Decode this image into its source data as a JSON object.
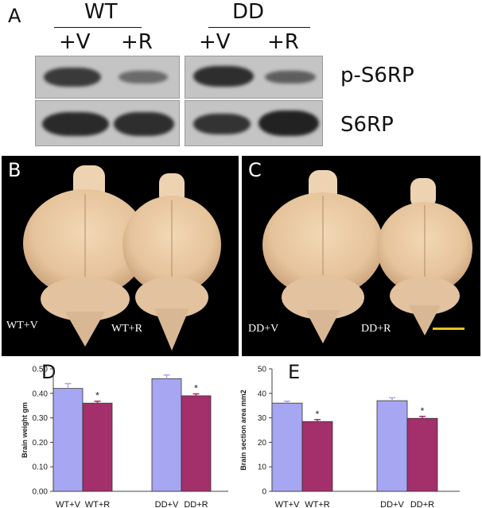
{
  "panel_a": {
    "letter": "A",
    "groups": [
      "WT",
      "DD"
    ],
    "lanes": [
      "+V",
      "+R",
      "+V",
      "+R"
    ],
    "rows": [
      "p-S6RP",
      "S6RP"
    ]
  },
  "panel_b": {
    "letter": "B",
    "labels": [
      "WT+V",
      "WT+R"
    ]
  },
  "panel_c": {
    "letter": "C",
    "labels": [
      "DD+V",
      "DD+R"
    ],
    "scale_bar_color": "#e8c21a"
  },
  "colors": {
    "vehicle": "#a6a6f2",
    "rapamycin": "#a3306a"
  },
  "chart_data": [
    {
      "type": "bar",
      "panel_letter": "D",
      "categories": [
        "WT+V",
        "WT+R",
        "DD+V",
        "DD+R"
      ],
      "values": [
        0.42,
        0.36,
        0.46,
        0.39
      ],
      "errors": [
        0.02,
        0.008,
        0.015,
        0.008
      ],
      "significance": [
        "",
        "*",
        "",
        "*"
      ],
      "ylabel": "Brain weight gm",
      "ylim": [
        0,
        0.5
      ],
      "yticks": [
        "0.00",
        "0.10",
        "0.20",
        "0.30",
        "0.40",
        "0.50"
      ]
    },
    {
      "type": "bar",
      "panel_letter": "E",
      "categories": [
        "WT+V",
        "WT+R",
        "DD+V",
        "DD+R"
      ],
      "values": [
        36,
        28.5,
        37,
        29.8
      ],
      "errors": [
        0.8,
        0.8,
        1.2,
        0.8
      ],
      "significance": [
        "",
        "*",
        "",
        "*"
      ],
      "ylabel": "Brain section area mm2",
      "ylim": [
        0,
        50
      ],
      "yticks": [
        "0",
        "10",
        "20",
        "30",
        "40",
        "50"
      ]
    }
  ]
}
